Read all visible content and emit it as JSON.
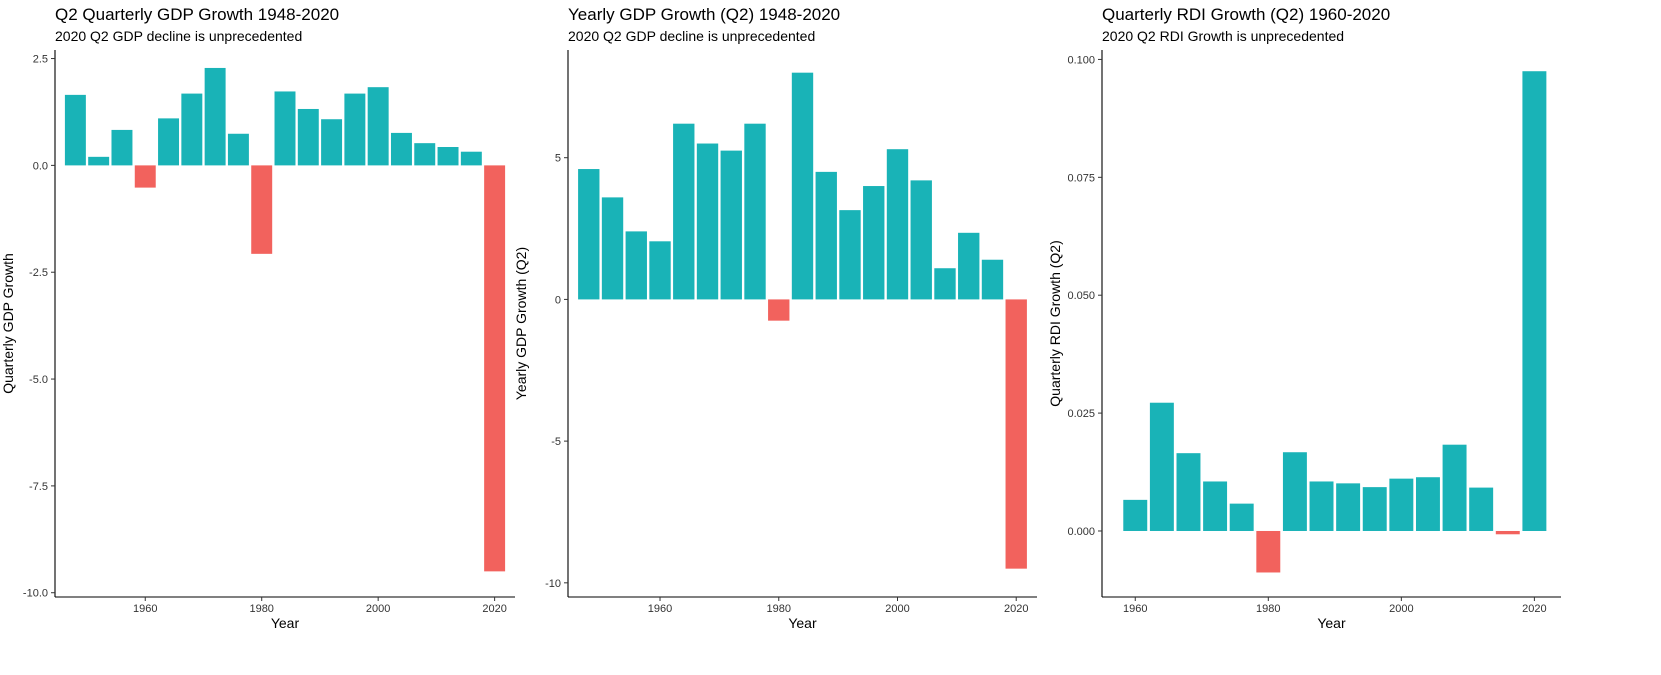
{
  "colors": {
    "positive": "#19B3B7",
    "negative": "#F2625D",
    "axis": "#000000"
  },
  "chart_data": [
    {
      "type": "bar",
      "title": "Q2 Quarterly GDP Growth 1948-2020",
      "subtitle": "2020 Q2 GDP decline is unprecedented",
      "xlabel": "Year",
      "ylabel": "Quarterly GDP Growth",
      "xlim": [
        1944.5,
        2023.5
      ],
      "ylim": [
        -10.1,
        2.7
      ],
      "xticks": [
        1960,
        1980,
        2000,
        2020
      ],
      "xtick_labels": [
        "1960",
        "1980",
        "2000",
        "2020"
      ],
      "yticks": [
        2.5,
        0,
        -2.5,
        -5,
        -7.5,
        -10
      ],
      "ytick_labels": [
        "2.5",
        "0.0",
        "-2.5",
        "-5.0",
        "-7.5",
        "-10.0"
      ],
      "bar_width": 3.6,
      "grid": false,
      "x": [
        1948,
        1952,
        1956,
        1960,
        1964,
        1968,
        1972,
        1976,
        1980,
        1984,
        1988,
        1992,
        1996,
        2000,
        2004,
        2008,
        2012,
        2016,
        2020
      ],
      "values": [
        1.65,
        0.2,
        0.83,
        -0.52,
        1.1,
        1.68,
        2.28,
        0.74,
        -2.07,
        1.73,
        1.32,
        1.08,
        1.68,
        1.83,
        0.76,
        0.52,
        0.43,
        0.32,
        -9.5
      ]
    },
    {
      "type": "bar",
      "title": "Yearly GDP Growth (Q2) 1948-2020",
      "subtitle": "2020 Q2 GDP decline is unprecedented",
      "xlabel": "Year",
      "ylabel": "Yearly GDP Growth (Q2)",
      "xlim": [
        1944.5,
        2023.5
      ],
      "ylim": [
        -10.5,
        8.8
      ],
      "xticks": [
        1960,
        1980,
        2000,
        2020
      ],
      "xtick_labels": [
        "1960",
        "1980",
        "2000",
        "2020"
      ],
      "yticks": [
        5,
        0,
        -5,
        -10
      ],
      "ytick_labels": [
        "5",
        "0",
        "-5",
        "-10"
      ],
      "bar_width": 3.6,
      "grid": false,
      "x": [
        1948,
        1952,
        1956,
        1960,
        1964,
        1968,
        1972,
        1976,
        1980,
        1984,
        1988,
        1992,
        1996,
        2000,
        2004,
        2008,
        2012,
        2016,
        2020
      ],
      "values": [
        4.6,
        3.6,
        2.4,
        2.05,
        6.2,
        5.5,
        5.25,
        6.2,
        -0.75,
        8.0,
        4.5,
        3.15,
        4.0,
        5.3,
        4.2,
        1.1,
        2.35,
        1.4,
        -9.5
      ]
    },
    {
      "type": "bar",
      "title": "Quarterly RDI Growth (Q2) 1960-2020",
      "subtitle": "2020 Q2 RDI Growth is unprecedented",
      "xlabel": "Year",
      "ylabel": "Quarterly RDI Growth (Q2)",
      "xlim": [
        1955,
        2024
      ],
      "ylim": [
        -0.014,
        0.102
      ],
      "xticks": [
        1960,
        1980,
        2000,
        2020
      ],
      "xtick_labels": [
        "1960",
        "1980",
        "2000",
        "2020"
      ],
      "yticks": [
        0.1,
        0.075,
        0.05,
        0.025,
        0
      ],
      "ytick_labels": [
        "0.100",
        "0.075",
        "0.050",
        "0.025",
        "0.000"
      ],
      "bar_width": 3.6,
      "grid": false,
      "x": [
        1960,
        1964,
        1968,
        1972,
        1976,
        1980,
        1984,
        1988,
        1992,
        1996,
        2000,
        2004,
        2008,
        2012,
        2016,
        2020
      ],
      "values": [
        0.0066,
        0.0272,
        0.0165,
        0.0105,
        0.0058,
        -0.0088,
        0.0167,
        0.0105,
        0.0101,
        0.0093,
        0.0111,
        0.0114,
        0.0183,
        0.0092,
        -0.0007,
        0.0975
      ]
    }
  ]
}
